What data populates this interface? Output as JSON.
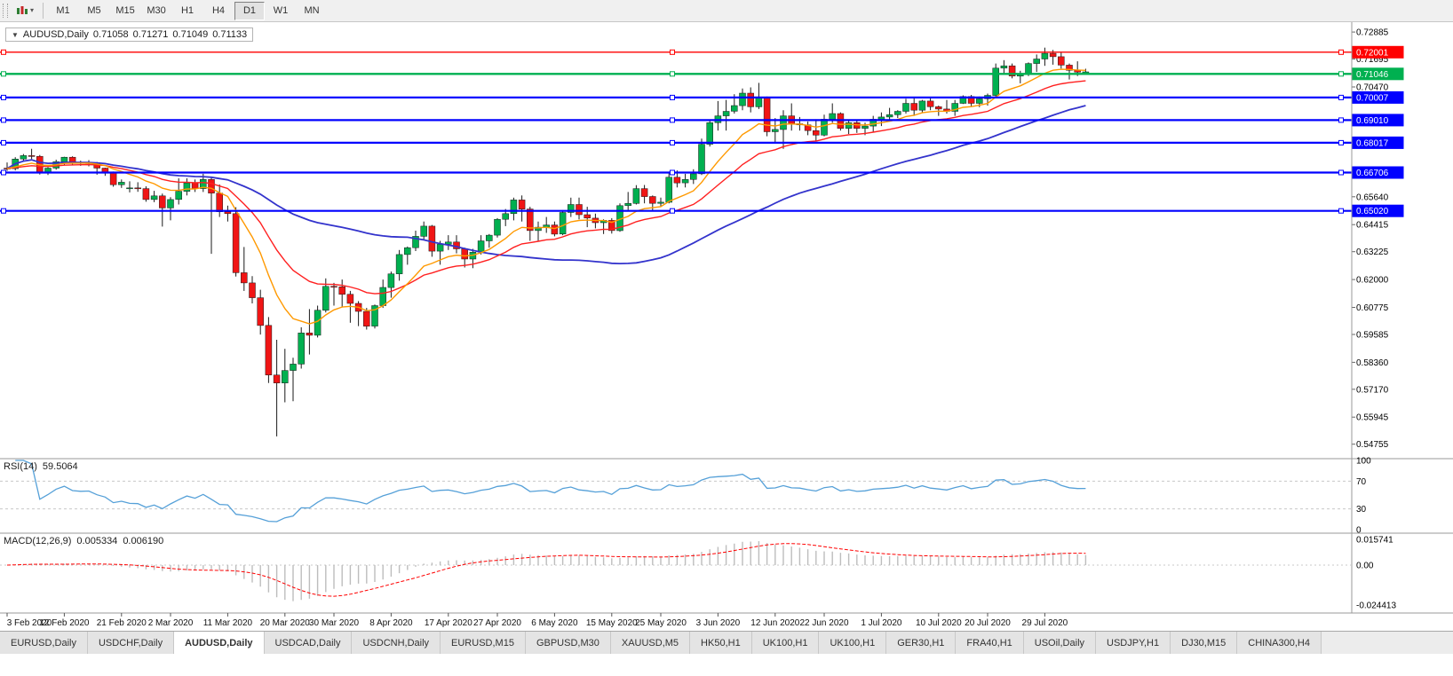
{
  "toolbar": {
    "timeframes": [
      "M1",
      "M5",
      "M15",
      "M30",
      "H1",
      "H4",
      "D1",
      "W1",
      "MN"
    ],
    "selected": "D1"
  },
  "title": {
    "marker": "▼",
    "symbol": "AUDUSD,Daily",
    "open": "0.71058",
    "high": "0.71271",
    "low": "0.71049",
    "close": "0.71133"
  },
  "panels": {
    "rsi": {
      "name": "RSI(14)",
      "value": "59.5064",
      "axis_labels": [
        "100",
        "70",
        "30",
        "0"
      ],
      "levels": [
        70,
        30
      ]
    },
    "macd": {
      "name": "MACD(12,26,9)",
      "value1": "0.005334",
      "value2": "0.006190",
      "axis_labels": [
        "0.015741",
        "0.00",
        "-0.024413"
      ]
    }
  },
  "tabs": [
    "EURUSD,Daily",
    "USDCHF,Daily",
    "AUDUSD,Daily",
    "USDCAD,Daily",
    "USDCNH,Daily",
    "EURUSD,M15",
    "GBPUSD,M30",
    "XAUUSD,M5",
    "HK50,H1",
    "UK100,H1",
    "UK100,H1",
    "GER30,H1",
    "FRA40,H1",
    "USOil,Daily",
    "USDJPY,H1",
    "DJ30,M15",
    "CHINA300,H4"
  ],
  "selected_tab_index": 2,
  "colors": {
    "candle_up": "#00b050",
    "candle_down": "#f01515",
    "wick": "#1a1a1a",
    "rsi_line": "#55a0d8",
    "macd_hist": "#bdbdbd",
    "macd_signal": "#ff0000"
  },
  "chart_data": {
    "type": "candlestick",
    "title": "AUDUSD,Daily",
    "ylim": [
      0.5412,
      0.7332
    ],
    "price_ticks": [
      "0.72885",
      "0.71695",
      "0.70470",
      "0.65640",
      "0.64415",
      "0.63225",
      "0.62000",
      "0.60775",
      "0.59585",
      "0.58360",
      "0.57170",
      "0.55945",
      "0.54755"
    ],
    "x_ticks": [
      [
        0,
        "3 Feb 2020"
      ],
      [
        7,
        "12 Feb 2020"
      ],
      [
        14,
        "21 Feb 2020"
      ],
      [
        20,
        "2 Mar 2020"
      ],
      [
        27,
        "11 Mar 2020"
      ],
      [
        34,
        "20 Mar 2020"
      ],
      [
        40,
        "30 Mar 2020"
      ],
      [
        47,
        "8 Apr 2020"
      ],
      [
        54,
        "17 Apr 2020"
      ],
      [
        60,
        "27 Apr 2020"
      ],
      [
        67,
        "6 May 2020"
      ],
      [
        74,
        "15 May 2020"
      ],
      [
        80,
        "25 May 2020"
      ],
      [
        87,
        "3 Jun 2020"
      ],
      [
        94,
        "12 Jun 2020"
      ],
      [
        100,
        "22 Jun 2020"
      ],
      [
        107,
        "1 Jul 2020"
      ],
      [
        114,
        "10 Jul 2020"
      ],
      [
        120,
        "20 Jul 2020"
      ],
      [
        127,
        "29 Jul 2020"
      ]
    ],
    "hlines": [
      {
        "price": 0.72001,
        "label": "0.72001",
        "color": "#ff0000",
        "width": 1.3
      },
      {
        "price": 0.71046,
        "label": "0.71046",
        "color": "#00b050",
        "width": 2.4
      },
      {
        "price": 0.70007,
        "label": "0.70007",
        "color": "#0000ff",
        "width": 2.2
      },
      {
        "price": 0.6901,
        "label": "0.69010",
        "color": "#0000ff",
        "width": 2.2
      },
      {
        "price": 0.68017,
        "label": "0.68017",
        "color": "#0000ff",
        "width": 2.2
      },
      {
        "price": 0.66706,
        "label": "0.66706",
        "color": "#0000ff",
        "width": 2.2
      },
      {
        "price": 0.6502,
        "label": "0.65020",
        "color": "#0000ff",
        "width": 2.2
      }
    ],
    "moving_averages": [
      {
        "period": 50,
        "method": "sma",
        "color": "#3333cc",
        "width": 1.8
      },
      {
        "period": 21,
        "method": "ema",
        "color": "#ff2020",
        "width": 1.4
      },
      {
        "period": 10,
        "method": "ema",
        "color": "#ff9900",
        "width": 1.4
      }
    ],
    "rsi_period": 14,
    "macd_params": [
      12,
      26,
      9
    ],
    "candles": [
      [
        0.669,
        0.6715,
        0.6678,
        0.6688
      ],
      [
        0.6688,
        0.6738,
        0.668,
        0.673
      ],
      [
        0.673,
        0.6752,
        0.6718,
        0.6745
      ],
      [
        0.6745,
        0.6775,
        0.673,
        0.6742
      ],
      [
        0.6742,
        0.6748,
        0.6662,
        0.6672
      ],
      [
        0.6672,
        0.6695,
        0.666,
        0.669
      ],
      [
        0.669,
        0.6727,
        0.6683,
        0.6718
      ],
      [
        0.6718,
        0.674,
        0.6703,
        0.6738
      ],
      [
        0.6738,
        0.6742,
        0.6705,
        0.6716
      ],
      [
        0.6716,
        0.6723,
        0.67,
        0.6712
      ],
      [
        0.6712,
        0.6725,
        0.6698,
        0.6714
      ],
      [
        0.6714,
        0.6717,
        0.6661,
        0.669
      ],
      [
        0.669,
        0.6692,
        0.6656,
        0.6672
      ],
      [
        0.6672,
        0.6675,
        0.6608,
        0.6617
      ],
      [
        0.6617,
        0.664,
        0.6603,
        0.6628
      ],
      [
        0.66,
        0.6632,
        0.6583,
        0.6603
      ],
      [
        0.6603,
        0.6628,
        0.6586,
        0.66
      ],
      [
        0.66,
        0.661,
        0.6542,
        0.6552
      ],
      [
        0.6552,
        0.659,
        0.654,
        0.6568
      ],
      [
        0.6568,
        0.6578,
        0.6433,
        0.6515
      ],
      [
        0.6515,
        0.6562,
        0.646,
        0.6552
      ],
      [
        0.6552,
        0.6645,
        0.653,
        0.6588
      ],
      [
        0.6588,
        0.6645,
        0.657,
        0.6625
      ],
      [
        0.6625,
        0.664,
        0.6585,
        0.66
      ],
      [
        0.66,
        0.6665,
        0.6585,
        0.664
      ],
      [
        0.664,
        0.665,
        0.6313,
        0.658
      ],
      [
        0.658,
        0.6618,
        0.6475,
        0.6498
      ],
      [
        0.6498,
        0.6525,
        0.6455,
        0.649
      ],
      [
        0.649,
        0.6518,
        0.6213,
        0.623
      ],
      [
        0.623,
        0.6343,
        0.615,
        0.6185
      ],
      [
        0.6185,
        0.6215,
        0.6095,
        0.612
      ],
      [
        0.612,
        0.6155,
        0.5958,
        0.5998
      ],
      [
        0.5998,
        0.6035,
        0.5745,
        0.578
      ],
      [
        0.578,
        0.5935,
        0.551,
        0.5745
      ],
      [
        0.5745,
        0.5895,
        0.566,
        0.58
      ],
      [
        0.58,
        0.5856,
        0.5665,
        0.5828
      ],
      [
        0.5828,
        0.599,
        0.5808,
        0.5965
      ],
      [
        0.5965,
        0.607,
        0.587,
        0.5955
      ],
      [
        0.5955,
        0.6085,
        0.5945,
        0.6065
      ],
      [
        0.6065,
        0.6205,
        0.6055,
        0.617
      ],
      [
        0.617,
        0.6185,
        0.6085,
        0.6168
      ],
      [
        0.6168,
        0.62,
        0.608,
        0.6135
      ],
      [
        0.6135,
        0.615,
        0.601,
        0.6095
      ],
      [
        0.6095,
        0.6105,
        0.5995,
        0.606
      ],
      [
        0.606,
        0.6075,
        0.598,
        0.5995
      ],
      [
        0.5995,
        0.609,
        0.5985,
        0.6085
      ],
      [
        0.6085,
        0.62,
        0.6075,
        0.6165
      ],
      [
        0.6165,
        0.6235,
        0.612,
        0.6225
      ],
      [
        0.6225,
        0.633,
        0.6195,
        0.631
      ],
      [
        0.631,
        0.6345,
        0.6265,
        0.634
      ],
      [
        0.634,
        0.6415,
        0.6325,
        0.639
      ],
      [
        0.639,
        0.6455,
        0.6375,
        0.6435
      ],
      [
        0.6435,
        0.644,
        0.63,
        0.6325
      ],
      [
        0.6325,
        0.637,
        0.6265,
        0.6355
      ],
      [
        0.6355,
        0.6395,
        0.633,
        0.6365
      ],
      [
        0.6365,
        0.6395,
        0.6315,
        0.6335
      ],
      [
        0.6335,
        0.634,
        0.6253,
        0.629
      ],
      [
        0.629,
        0.6335,
        0.625,
        0.632
      ],
      [
        0.632,
        0.6395,
        0.631,
        0.637
      ],
      [
        0.637,
        0.64,
        0.634,
        0.6395
      ],
      [
        0.6395,
        0.647,
        0.6385,
        0.6465
      ],
      [
        0.6465,
        0.651,
        0.6435,
        0.649
      ],
      [
        0.649,
        0.656,
        0.646,
        0.655
      ],
      [
        0.655,
        0.657,
        0.6455,
        0.651
      ],
      [
        0.651,
        0.652,
        0.637,
        0.6415
      ],
      [
        0.6415,
        0.6455,
        0.637,
        0.643
      ],
      [
        0.643,
        0.6475,
        0.6405,
        0.644
      ],
      [
        0.644,
        0.6455,
        0.639,
        0.64
      ],
      [
        0.64,
        0.6505,
        0.6395,
        0.6495
      ],
      [
        0.6495,
        0.656,
        0.6475,
        0.653
      ],
      [
        0.653,
        0.656,
        0.6465,
        0.6485
      ],
      [
        0.6485,
        0.652,
        0.643,
        0.647
      ],
      [
        0.647,
        0.649,
        0.6425,
        0.645
      ],
      [
        0.645,
        0.6465,
        0.64,
        0.646
      ],
      [
        0.646,
        0.647,
        0.6402,
        0.6415
      ],
      [
        0.6415,
        0.6535,
        0.641,
        0.6525
      ],
      [
        0.6525,
        0.6585,
        0.6505,
        0.6535
      ],
      [
        0.6535,
        0.6615,
        0.653,
        0.66
      ],
      [
        0.66,
        0.6616,
        0.6535,
        0.6565
      ],
      [
        0.6565,
        0.657,
        0.6505,
        0.6535
      ],
      [
        0.6535,
        0.656,
        0.652,
        0.654
      ],
      [
        0.654,
        0.6675,
        0.6535,
        0.665
      ],
      [
        0.665,
        0.668,
        0.6605,
        0.6625
      ],
      [
        0.6625,
        0.6665,
        0.6605,
        0.664
      ],
      [
        0.664,
        0.6685,
        0.662,
        0.6665
      ],
      [
        0.6665,
        0.682,
        0.666,
        0.6795
      ],
      [
        0.6795,
        0.69,
        0.6785,
        0.689
      ],
      [
        0.689,
        0.6985,
        0.6855,
        0.692
      ],
      [
        0.692,
        0.699,
        0.6855,
        0.694
      ],
      [
        0.694,
        0.7015,
        0.693,
        0.6965
      ],
      [
        0.6965,
        0.704,
        0.6945,
        0.702
      ],
      [
        0.702,
        0.7045,
        0.6935,
        0.696
      ],
      [
        0.696,
        0.7065,
        0.695,
        0.7
      ],
      [
        0.7,
        0.7005,
        0.683,
        0.685
      ],
      [
        0.685,
        0.691,
        0.68,
        0.686
      ],
      [
        0.686,
        0.6945,
        0.6775,
        0.692
      ],
      [
        0.692,
        0.6975,
        0.6855,
        0.6885
      ],
      [
        0.6885,
        0.6915,
        0.6855,
        0.688
      ],
      [
        0.688,
        0.6895,
        0.6835,
        0.6855
      ],
      [
        0.6855,
        0.6905,
        0.681,
        0.6835
      ],
      [
        0.6835,
        0.6925,
        0.683,
        0.6905
      ],
      [
        0.6905,
        0.6975,
        0.689,
        0.693
      ],
      [
        0.693,
        0.6935,
        0.6855,
        0.6865
      ],
      [
        0.6865,
        0.69,
        0.684,
        0.689
      ],
      [
        0.689,
        0.69,
        0.6845,
        0.6865
      ],
      [
        0.6865,
        0.689,
        0.6835,
        0.6875
      ],
      [
        0.6875,
        0.692,
        0.685,
        0.6905
      ],
      [
        0.6905,
        0.6935,
        0.6875,
        0.6915
      ],
      [
        0.6915,
        0.6955,
        0.69,
        0.6925
      ],
      [
        0.6925,
        0.6945,
        0.691,
        0.694
      ],
      [
        0.694,
        0.6995,
        0.693,
        0.6975
      ],
      [
        0.6975,
        0.6998,
        0.692,
        0.6945
      ],
      [
        0.6945,
        0.699,
        0.6935,
        0.6985
      ],
      [
        0.6985,
        0.7,
        0.6945,
        0.696
      ],
      [
        0.696,
        0.6965,
        0.692,
        0.695
      ],
      [
        0.695,
        0.699,
        0.693,
        0.694
      ],
      [
        0.694,
        0.699,
        0.692,
        0.6975
      ],
      [
        0.6975,
        0.701,
        0.6972,
        0.7005
      ],
      [
        0.7005,
        0.7012,
        0.696,
        0.6975
      ],
      [
        0.6975,
        0.7005,
        0.6958,
        0.6995
      ],
      [
        0.6995,
        0.7018,
        0.6965,
        0.701
      ],
      [
        0.701,
        0.715,
        0.7,
        0.713
      ],
      [
        0.713,
        0.7165,
        0.71,
        0.714
      ],
      [
        0.714,
        0.715,
        0.7085,
        0.7095
      ],
      [
        0.7095,
        0.7118,
        0.7063,
        0.7105
      ],
      [
        0.7105,
        0.7155,
        0.7095,
        0.715
      ],
      [
        0.715,
        0.719,
        0.7113,
        0.717
      ],
      [
        0.717,
        0.722,
        0.714,
        0.7195
      ],
      [
        0.7195,
        0.721,
        0.7145,
        0.718
      ],
      [
        0.718,
        0.72,
        0.7128,
        0.7143
      ],
      [
        0.7143,
        0.715,
        0.708,
        0.712
      ],
      [
        0.712,
        0.716,
        0.7095,
        0.7112
      ],
      [
        0.71058,
        0.71271,
        0.71049,
        0.71133
      ]
    ]
  }
}
